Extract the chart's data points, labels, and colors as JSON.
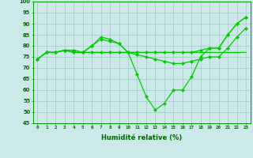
{
  "xlabel": "Humidité relative (%)",
  "background_color": "#cce8e8",
  "grid_color": "#aacccc",
  "line_color": "#00cc00",
  "x": [
    0,
    1,
    2,
    3,
    4,
    5,
    6,
    7,
    8,
    9,
    10,
    11,
    12,
    13,
    14,
    15,
    16,
    17,
    18,
    19,
    20,
    21,
    22,
    23
  ],
  "curve1": [
    74,
    77,
    77,
    78,
    78,
    77,
    80,
    84,
    83,
    81,
    77,
    77,
    77,
    77,
    77,
    77,
    77,
    77,
    78,
    79,
    79,
    85,
    90,
    93
  ],
  "curve2": [
    74,
    77,
    77,
    78,
    78,
    77,
    80,
    83,
    82,
    81,
    77,
    76,
    75,
    74,
    73,
    72,
    72,
    73,
    74,
    75,
    75,
    79,
    84,
    88
  ],
  "curve3": [
    74,
    77,
    77,
    78,
    77,
    77,
    77,
    77,
    77,
    77,
    77,
    77,
    77,
    77,
    77,
    77,
    77,
    77,
    77,
    77,
    77,
    77,
    77,
    77
  ],
  "curve4": [
    74,
    77,
    77,
    78,
    77,
    77,
    77,
    77,
    77,
    77,
    77,
    67,
    57,
    51,
    54,
    60,
    60,
    66,
    75,
    79,
    79,
    85,
    90,
    93
  ],
  "ylim": [
    45,
    100
  ],
  "yticks": [
    45,
    50,
    55,
    60,
    65,
    70,
    75,
    80,
    85,
    90,
    95,
    100
  ],
  "xlim": [
    -0.5,
    23.5
  ]
}
